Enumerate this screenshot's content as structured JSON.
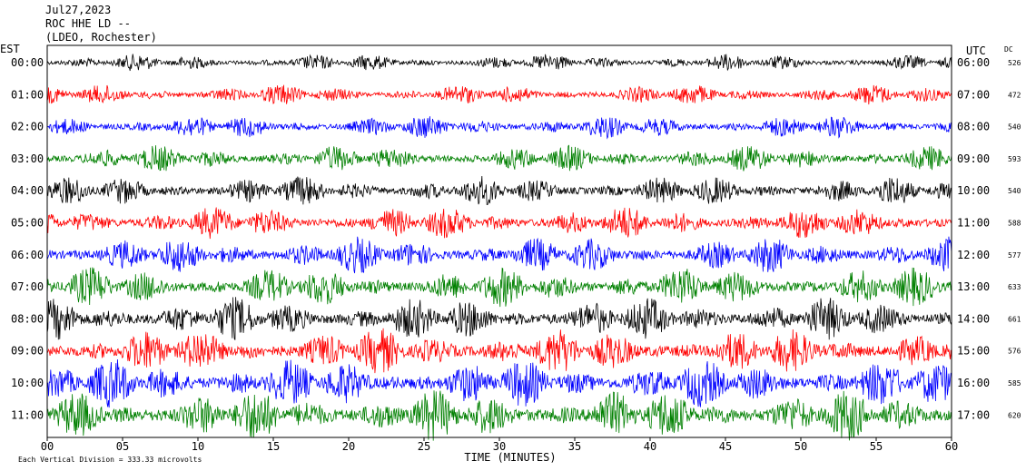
{
  "header": {
    "date": "Jul27,2023",
    "station": "ROC HHE LD --",
    "network": "(LDEO, Rochester)"
  },
  "chart_data": {
    "type": "line",
    "left_axis_label": "EST",
    "right_axis_label": "UTC",
    "dc_label": "DC",
    "xlabel": "TIME (MINUTES)",
    "xlim": [
      0,
      60
    ],
    "x_ticks": [
      "00",
      "05",
      "10",
      "15",
      "20",
      "25",
      "30",
      "35",
      "40",
      "45",
      "50",
      "55",
      "60"
    ],
    "rows": [
      {
        "est": "00:00",
        "utc": "06:00",
        "dc": "526",
        "color": "#000000"
      },
      {
        "est": "01:00",
        "utc": "07:00",
        "dc": "472",
        "color": "#ff0000"
      },
      {
        "est": "02:00",
        "utc": "08:00",
        "dc": "540",
        "color": "#0000ff"
      },
      {
        "est": "03:00",
        "utc": "09:00",
        "dc": "593",
        "color": "#008000"
      },
      {
        "est": "04:00",
        "utc": "10:00",
        "dc": "540",
        "color": "#000000"
      },
      {
        "est": "05:00",
        "utc": "11:00",
        "dc": "588",
        "color": "#ff0000"
      },
      {
        "est": "06:00",
        "utc": "12:00",
        "dc": "577",
        "color": "#0000ff"
      },
      {
        "est": "07:00",
        "utc": "13:00",
        "dc": "633",
        "color": "#008000"
      },
      {
        "est": "08:00",
        "utc": "14:00",
        "dc": "661",
        "color": "#000000"
      },
      {
        "est": "09:00",
        "utc": "15:00",
        "dc": "576",
        "color": "#ff0000"
      },
      {
        "est": "10:00",
        "utc": "16:00",
        "dc": "585",
        "color": "#0000ff"
      },
      {
        "est": "11:00",
        "utc": "17:00",
        "dc": "620",
        "color": "#008000"
      }
    ],
    "footer_note": "Each Vertical Division = 333.33 microvolts"
  }
}
